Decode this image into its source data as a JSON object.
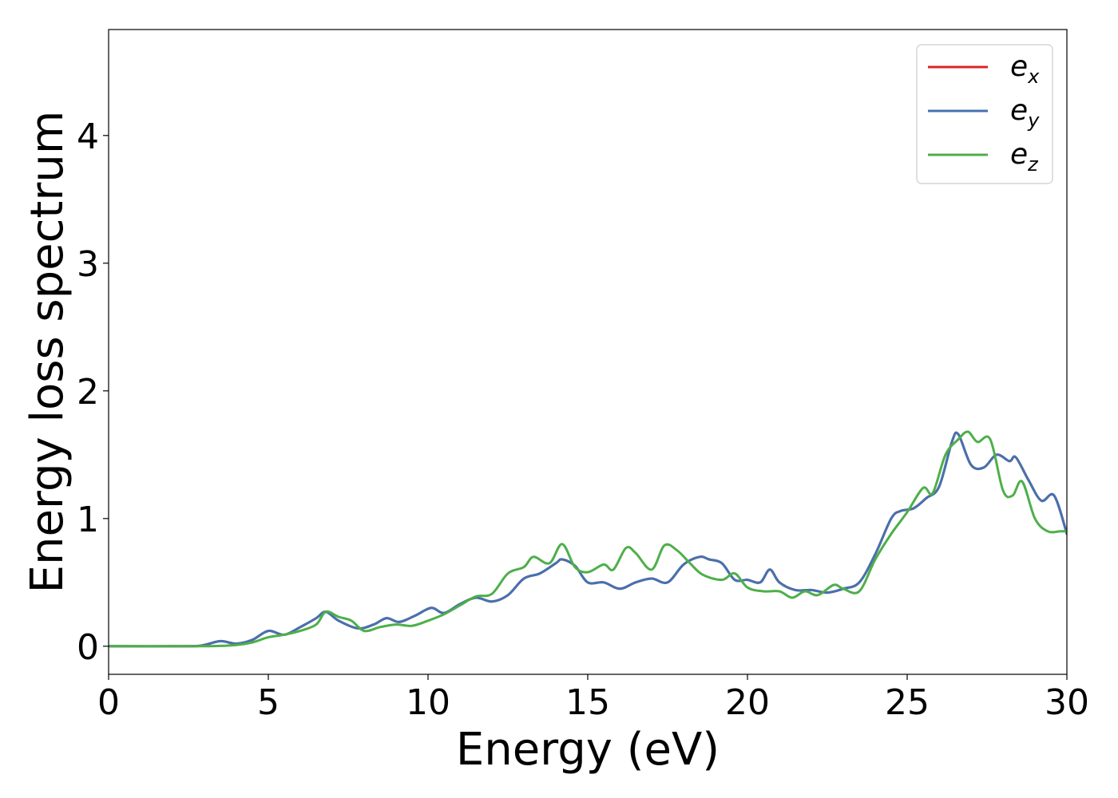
{
  "chart_data": {
    "type": "line",
    "title": "",
    "xlabel": "Energy (eV)",
    "ylabel": "Energy loss spectrum",
    "xlim": [
      0,
      30
    ],
    "ylim": [
      -0.22,
      4.83
    ],
    "xticks": [
      "0",
      "5",
      "10",
      "15",
      "20",
      "25",
      "30"
    ],
    "yticks": [
      "0",
      "1",
      "2",
      "3",
      "4"
    ],
    "grid": false,
    "legend_position": "top-right",
    "legend": [
      {
        "base": "e",
        "sub": "x",
        "color": "#d62728"
      },
      {
        "base": "e",
        "sub": "y",
        "color": "#4472b0"
      },
      {
        "base": "e",
        "sub": "z",
        "color": "#4daf4a"
      }
    ],
    "series": [
      {
        "name": "e_x",
        "color": "#d62728",
        "x": [
          0,
          2.5,
          3,
          3.5,
          4,
          4.5,
          5,
          5.5,
          6,
          6.5,
          6.8,
          7.2,
          7.8,
          8.3,
          8.7,
          9.1,
          9.6,
          10.1,
          10.5,
          11.0,
          11.5,
          12.0,
          12.5,
          13.0,
          13.5,
          14.0,
          14.2,
          14.6,
          15.0,
          15.5,
          16.0,
          16.5,
          17.0,
          17.5,
          18.0,
          18.5,
          18.8,
          19.2,
          19.6,
          20.0,
          20.4,
          20.7,
          21.0,
          21.5,
          22.0,
          22.5,
          23.0,
          23.5,
          24.0,
          24.5,
          24.8,
          25.2,
          25.6,
          26.0,
          26.4,
          26.6,
          27.0,
          27.4,
          27.8,
          28.2,
          28.4,
          28.8,
          29.2,
          29.6,
          30
        ],
        "values": [
          0.0,
          0.0,
          0.01,
          0.04,
          0.02,
          0.05,
          0.12,
          0.09,
          0.15,
          0.22,
          0.27,
          0.2,
          0.14,
          0.17,
          0.22,
          0.19,
          0.24,
          0.3,
          0.26,
          0.33,
          0.38,
          0.35,
          0.4,
          0.53,
          0.57,
          0.65,
          0.68,
          0.63,
          0.5,
          0.5,
          0.45,
          0.5,
          0.53,
          0.5,
          0.64,
          0.7,
          0.68,
          0.65,
          0.52,
          0.52,
          0.5,
          0.6,
          0.5,
          0.44,
          0.44,
          0.42,
          0.45,
          0.5,
          0.72,
          1.0,
          1.06,
          1.08,
          1.16,
          1.25,
          1.6,
          1.66,
          1.42,
          1.4,
          1.5,
          1.45,
          1.48,
          1.3,
          1.14,
          1.18,
          0.88
        ]
      },
      {
        "name": "e_y",
        "color": "#4472b0",
        "x": [
          0,
          2.5,
          3,
          3.5,
          4,
          4.5,
          5,
          5.5,
          6,
          6.5,
          6.8,
          7.2,
          7.8,
          8.3,
          8.7,
          9.1,
          9.6,
          10.1,
          10.5,
          11.0,
          11.5,
          12.0,
          12.5,
          13.0,
          13.5,
          14.0,
          14.2,
          14.6,
          15.0,
          15.5,
          16.0,
          16.5,
          17.0,
          17.5,
          18.0,
          18.5,
          18.8,
          19.2,
          19.6,
          20.0,
          20.4,
          20.7,
          21.0,
          21.5,
          22.0,
          22.5,
          23.0,
          23.5,
          24.0,
          24.5,
          24.8,
          25.2,
          25.6,
          26.0,
          26.4,
          26.6,
          27.0,
          27.4,
          27.8,
          28.2,
          28.4,
          28.8,
          29.2,
          29.6,
          30
        ],
        "values": [
          0.0,
          0.0,
          0.01,
          0.04,
          0.02,
          0.05,
          0.12,
          0.09,
          0.15,
          0.22,
          0.27,
          0.2,
          0.14,
          0.17,
          0.22,
          0.19,
          0.24,
          0.3,
          0.26,
          0.33,
          0.38,
          0.35,
          0.4,
          0.53,
          0.57,
          0.65,
          0.68,
          0.63,
          0.5,
          0.5,
          0.45,
          0.5,
          0.53,
          0.5,
          0.64,
          0.7,
          0.68,
          0.65,
          0.52,
          0.52,
          0.5,
          0.6,
          0.5,
          0.44,
          0.44,
          0.42,
          0.45,
          0.5,
          0.72,
          1.0,
          1.06,
          1.08,
          1.16,
          1.25,
          1.6,
          1.66,
          1.42,
          1.4,
          1.5,
          1.45,
          1.48,
          1.3,
          1.14,
          1.18,
          0.88
        ]
      },
      {
        "name": "e_z",
        "color": "#4daf4a",
        "x": [
          0,
          3,
          4,
          4.5,
          5,
          5.5,
          6,
          6.5,
          6.8,
          7.2,
          7.6,
          8.0,
          8.5,
          9.0,
          9.5,
          10.0,
          10.5,
          11.0,
          11.5,
          12.0,
          12.5,
          13.0,
          13.3,
          13.8,
          14.2,
          14.6,
          15.0,
          15.5,
          15.8,
          16.2,
          16.5,
          17.0,
          17.4,
          17.8,
          18.2,
          18.6,
          19.2,
          19.6,
          20.0,
          20.5,
          21.0,
          21.4,
          21.8,
          22.2,
          22.7,
          23.0,
          23.5,
          24.0,
          24.5,
          25.0,
          25.5,
          25.8,
          26.2,
          26.6,
          26.9,
          27.2,
          27.6,
          28.0,
          28.3,
          28.6,
          29.0,
          29.4,
          29.8,
          30
        ],
        "values": [
          0.0,
          0.0,
          0.01,
          0.03,
          0.07,
          0.09,
          0.12,
          0.17,
          0.27,
          0.23,
          0.2,
          0.12,
          0.15,
          0.17,
          0.16,
          0.2,
          0.25,
          0.32,
          0.39,
          0.41,
          0.57,
          0.62,
          0.7,
          0.65,
          0.8,
          0.62,
          0.58,
          0.64,
          0.6,
          0.77,
          0.73,
          0.6,
          0.79,
          0.75,
          0.65,
          0.56,
          0.52,
          0.57,
          0.46,
          0.43,
          0.43,
          0.38,
          0.43,
          0.4,
          0.48,
          0.45,
          0.43,
          0.68,
          0.88,
          1.05,
          1.24,
          1.2,
          1.5,
          1.62,
          1.68,
          1.6,
          1.62,
          1.22,
          1.18,
          1.29,
          1.0,
          0.9,
          0.9,
          0.9
        ]
      }
    ]
  }
}
